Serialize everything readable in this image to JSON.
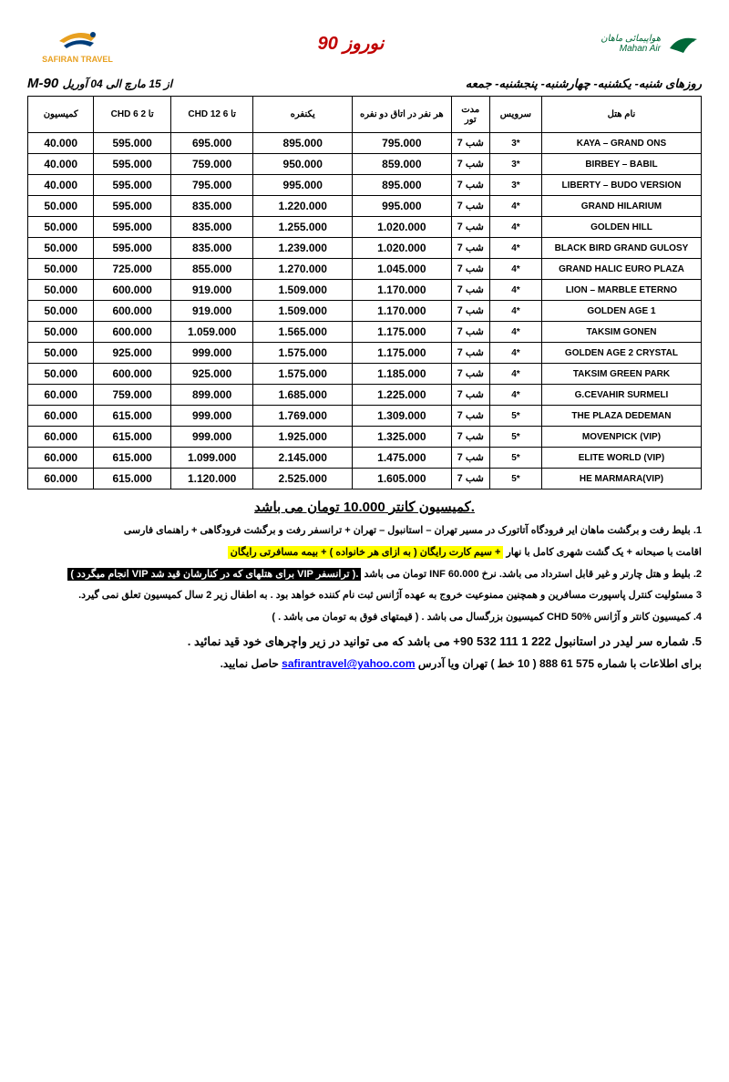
{
  "header": {
    "title": "نوروز 90",
    "left_logo_text": "SAFIRAN TRAVEL",
    "right_logo_line1": "هواپیمائی ماهان",
    "right_logo_line2": "Mahan Air",
    "days_line": "روزهای شنبه- یکشنبه- چهارشنبه- پنجشنبه- جمعه",
    "dates_line": "از 15 مارچ الی 04 آوریل",
    "code": "M-90"
  },
  "table": {
    "columns": [
      "کمیسیون",
      "CHD 6 تا 2",
      "CHD 12 تا 6",
      "یکنفره",
      "هر نفر در اتاق دو نفره",
      "مدت تور",
      "سرویس",
      "نام هتل"
    ],
    "rows": [
      {
        "commission": "40.000",
        "chd6": "595.000",
        "chd12": "695.000",
        "single": "895.000",
        "double": "795.000",
        "nights": "7 شب",
        "stars": "3*",
        "hotel": "KAYA – GRAND ONS"
      },
      {
        "commission": "40.000",
        "chd6": "595.000",
        "chd12": "759.000",
        "single": "950.000",
        "double": "859.000",
        "nights": "7 شب",
        "stars": "3*",
        "hotel": "BIRBEY – BABIL"
      },
      {
        "commission": "40.000",
        "chd6": "595.000",
        "chd12": "795.000",
        "single": "995.000",
        "double": "895.000",
        "nights": "7 شب",
        "stars": "3*",
        "hotel": "LIBERTY – BUDO VERSION"
      },
      {
        "commission": "50.000",
        "chd6": "595.000",
        "chd12": "835.000",
        "single": "1.220.000",
        "double": "995.000",
        "nights": "7 شب",
        "stars": "4*",
        "hotel": "GRAND HILARIUM"
      },
      {
        "commission": "50.000",
        "chd6": "595.000",
        "chd12": "835.000",
        "single": "1.255.000",
        "double": "1.020.000",
        "nights": "7 شب",
        "stars": "4*",
        "hotel": "GOLDEN HILL"
      },
      {
        "commission": "50.000",
        "chd6": "595.000",
        "chd12": "835.000",
        "single": "1.239.000",
        "double": "1.020.000",
        "nights": "7 شب",
        "stars": "4*",
        "hotel": "BLACK BIRD GRAND GULOSY"
      },
      {
        "commission": "50.000",
        "chd6": "725.000",
        "chd12": "855.000",
        "single": "1.270.000",
        "double": "1.045.000",
        "nights": "7 شب",
        "stars": "4*",
        "hotel": "GRAND HALIC EURO PLAZA"
      },
      {
        "commission": "50.000",
        "chd6": "600.000",
        "chd12": "919.000",
        "single": "1.509.000",
        "double": "1.170.000",
        "nights": "7 شب",
        "stars": "4*",
        "hotel": "LION – MARBLE ETERNO"
      },
      {
        "commission": "50.000",
        "chd6": "600.000",
        "chd12": "919.000",
        "single": "1.509.000",
        "double": "1.170.000",
        "nights": "7 شب",
        "stars": "4*",
        "hotel": "GOLDEN AGE 1"
      },
      {
        "commission": "50.000",
        "chd6": "600.000",
        "chd12": "1.059.000",
        "single": "1.565.000",
        "double": "1.175.000",
        "nights": "7 شب",
        "stars": "4*",
        "hotel": "TAKSIM GONEN"
      },
      {
        "commission": "50.000",
        "chd6": "925.000",
        "chd12": "999.000",
        "single": "1.575.000",
        "double": "1.175.000",
        "nights": "7 شب",
        "stars": "4*",
        "hotel": "GOLDEN AGE 2 CRYSTAL"
      },
      {
        "commission": "50.000",
        "chd6": "600.000",
        "chd12": "925.000",
        "single": "1.575.000",
        "double": "1.185.000",
        "nights": "7 شب",
        "stars": "4*",
        "hotel": "TAKSIM GREEN PARK"
      },
      {
        "commission": "60.000",
        "chd6": "759.000",
        "chd12": "899.000",
        "single": "1.685.000",
        "double": "1.225.000",
        "nights": "7 شب",
        "stars": "4*",
        "hotel": "G.CEVAHIR SURMELI"
      },
      {
        "commission": "60.000",
        "chd6": "615.000",
        "chd12": "999.000",
        "single": "1.769.000",
        "double": "1.309.000",
        "nights": "7 شب",
        "stars": "5*",
        "hotel": "THE PLAZA DEDEMAN"
      },
      {
        "commission": "60.000",
        "chd6": "615.000",
        "chd12": "999.000",
        "single": "1.925.000",
        "double": "1.325.000",
        "nights": "7 شب",
        "stars": "5*",
        "hotel": "MOVENPICK (VIP)"
      },
      {
        "commission": "60.000",
        "chd6": "615.000",
        "chd12": "1.099.000",
        "single": "2.145.000",
        "double": "1.475.000",
        "nights": "7 شب",
        "stars": "5*",
        "hotel": "ELITE WORLD (VIP)"
      },
      {
        "commission": "60.000",
        "chd6": "615.000",
        "chd12": "1.120.000",
        "single": "2.525.000",
        "double": "1.605.000",
        "nights": "7 شب",
        "stars": "5*",
        "hotel": "HE MARMARA(VIP)"
      }
    ]
  },
  "footer": {
    "commission_title": "کمیسیون کانتر   10.000 تومان می باشد.",
    "note1_prefix": "1.",
    "note1": "بلیط رفت و برگشت ماهان  ایر  فرودگاه آتاتورک در مسیر تهران – استانبول – تهران + ترانسفر رفت و برگشت فرودگاهی + راهنمای فارسی",
    "note1b_plain": "اقامت با صبحانه + یک گشت شهری کامل با  نهار",
    "note1b_hl": "+ سیم کارت رایگان ( به ازای هر خانواده ) + بیمه مسافرتی رایگان",
    "note2_prefix": "2.",
    "note2_plain": "بلیط و هتل چارتر و غیر قابل استرداد می باشد. نرخ  INF   60.000 تومان می باشد",
    "note2_hl": ".( ترانسفر VIP  برای هتلهای که در کنارشان قید شد VIP انجام میگردد )",
    "note3_prefix": "3",
    "note3": "مسئولیت کنترل پاسپورت مسافرین و همچنین ممنوعیت خروج به عهده آژانس ثبت نام کننده خواهد بود . به اطفال زیر 2 سال کمیسیون تعلق نمی گیرد.",
    "note4_prefix": "4.",
    "note4": "کمیسیون کانتر و آژانس  CHD  50% کمیسیون بزرگسال می باشد . ( قیمتهای فوق به تومان می باشد . )",
    "note5_prefix": "5.",
    "note5": "شماره سر لیدر در استانبول  222 1 111 532 90+ می باشد که می توانید در زیر واچرهای خود قید نمائید .",
    "contact_prefix": "برای اطلاعات با شماره 575 61 888 ( 10 خط ) تهران ویا آدرس",
    "contact_email": "safirantravel@yahoo.com",
    "contact_suffix": "حاصل نمایید."
  },
  "colors": {
    "title_color": "#c00000",
    "highlight_yellow": "#ffff00",
    "highlight_black": "#000000",
    "link_color": "#0000ff",
    "mahan_green": "#006838",
    "safiran_orange": "#e8a020",
    "safiran_blue": "#003d7a"
  }
}
